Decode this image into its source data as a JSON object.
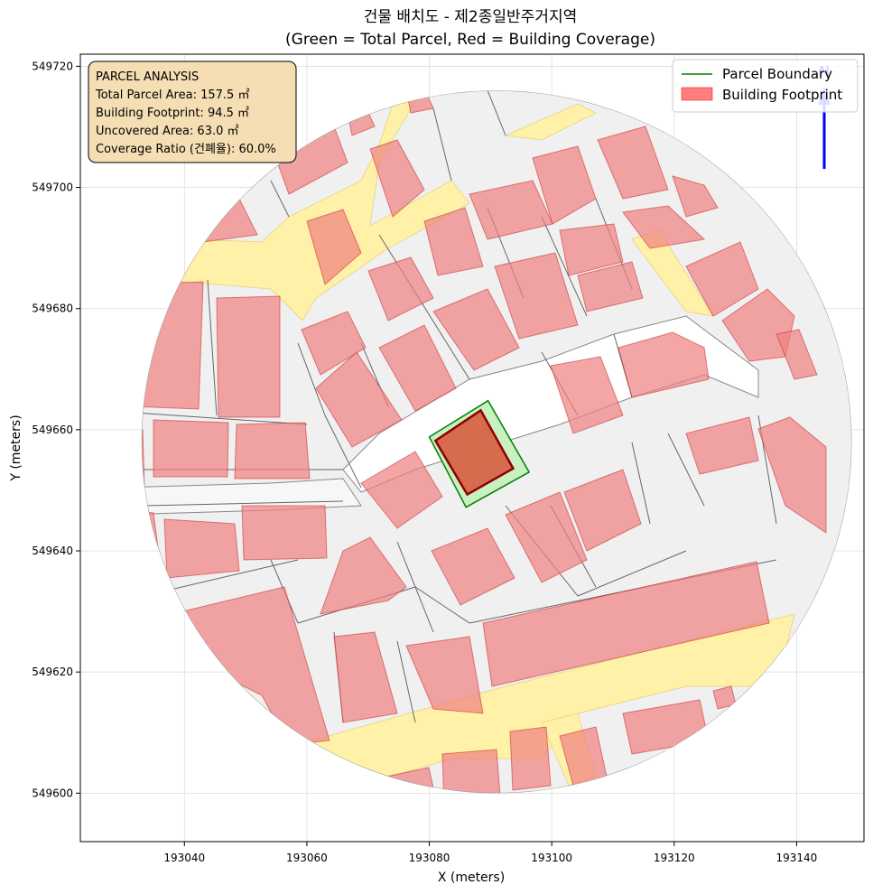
{
  "chart_data": {
    "type": "map",
    "title": "건물 배치도 - 제2종일반주거지역",
    "subtitle": "(Green = Total Parcel, Red = Building Coverage)",
    "xlabel": "X (meters)",
    "ylabel": "Y (meters)",
    "xlim": [
      193023,
      193151
    ],
    "ylim": [
      549592,
      549722
    ],
    "xticks": [
      193040,
      193060,
      193080,
      193100,
      193120,
      193140
    ],
    "yticks": [
      549600,
      549620,
      549640,
      549660,
      549680,
      549700,
      549720
    ],
    "grid": true,
    "legend": {
      "position": "top-right",
      "entries": [
        {
          "label": "Parcel Boundary",
          "kind": "line",
          "color": "#008000"
        },
        {
          "label": "Building Footprint",
          "kind": "patch",
          "color": "#ff0000"
        }
      ]
    },
    "info_box": {
      "position": "top-left",
      "lines": [
        "PARCEL ANALYSIS",
        "Total Parcel Area: 157.5 ㎡",
        "Building Footprint: 94.5 ㎡",
        "Uncovered Area: 63.0 ㎡",
        "Coverage Ratio (건폐율): 60.0%"
      ]
    },
    "site_center": [
      193091,
      549658
    ],
    "site_radius": 58,
    "target_parcel": [
      [
        193080.0,
        549658.8
      ],
      [
        193089.6,
        549664.8
      ],
      [
        193096.3,
        549653.0
      ],
      [
        193086.0,
        549647.2
      ]
    ],
    "target_building": [
      [
        193081.0,
        549658.2
      ],
      [
        193088.4,
        549663.2
      ],
      [
        193093.7,
        549653.6
      ],
      [
        193086.2,
        549649.3
      ]
    ],
    "north_arrow": {
      "label": "N",
      "color": "#0000ff"
    },
    "colors": {
      "parcel_fill": "#f0f0f0",
      "parcel_edge": "#555555",
      "building": "#f08080",
      "road": "#fff2a8",
      "target_parcel_fill": "#c8f0c0",
      "target_building": "#d9543a"
    }
  }
}
